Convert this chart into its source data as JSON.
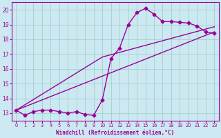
{
  "title": "",
  "xlabel": "Windchill (Refroidissement éolien,°C)",
  "ylabel": "",
  "xlim": [
    -0.5,
    23.5
  ],
  "ylim": [
    12.5,
    20.5
  ],
  "xticks": [
    0,
    1,
    2,
    3,
    4,
    5,
    6,
    7,
    8,
    9,
    10,
    11,
    12,
    13,
    14,
    15,
    16,
    17,
    18,
    19,
    20,
    21,
    22,
    23
  ],
  "yticks": [
    13,
    14,
    15,
    16,
    17,
    18,
    19,
    20
  ],
  "background_color": "#cce8f0",
  "grid_color": "#99cccc",
  "line_color": "#990099",
  "curve1_x": [
    0,
    1,
    2,
    3,
    4,
    5,
    6,
    7,
    8,
    9,
    10,
    11,
    12,
    13,
    14,
    15,
    16,
    17,
    18,
    19,
    20,
    21,
    22,
    23
  ],
  "curve1_y": [
    13.2,
    12.85,
    13.1,
    13.2,
    13.2,
    13.1,
    13.0,
    13.1,
    12.9,
    12.85,
    13.9,
    16.7,
    17.4,
    19.0,
    19.8,
    20.1,
    19.7,
    19.2,
    19.2,
    19.15,
    19.1,
    18.9,
    18.5,
    18.4
  ],
  "curve2_x": [
    0,
    23
  ],
  "curve2_y": [
    13.2,
    18.5
  ],
  "curve3_x": [
    0,
    10,
    23
  ],
  "curve3_y": [
    13.2,
    16.8,
    18.85
  ],
  "marker": "D",
  "markersize": 2.5,
  "linewidth": 1.0
}
